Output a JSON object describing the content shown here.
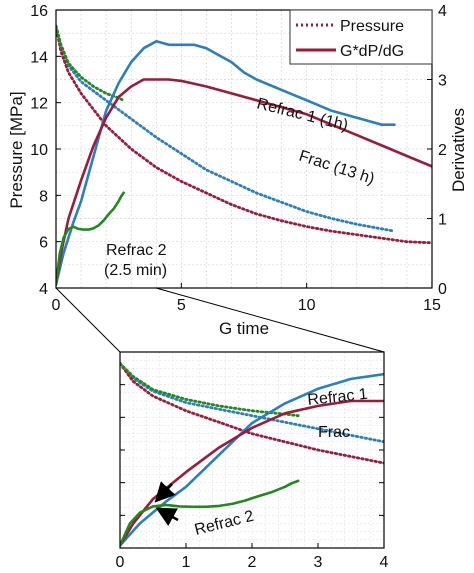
{
  "chart_data": [
    {
      "type": "line",
      "xlabel": "G time",
      "ylabel": "Pressure [MPa]",
      "y2label": "Derivatives",
      "xlim": [
        0,
        15
      ],
      "ylim": [
        4,
        16
      ],
      "y2lim": [
        0,
        4
      ],
      "xticks": [
        0,
        5,
        10,
        15
      ],
      "yticks": [
        4,
        6,
        8,
        10,
        12,
        14,
        16
      ],
      "y2ticks": [
        0,
        1,
        2,
        3,
        4
      ],
      "grid": true,
      "legend": {
        "placement": "top-right",
        "entries": [
          {
            "label": "Pressure",
            "style": "dotted"
          },
          {
            "label": "G*dP/dG",
            "style": "solid"
          }
        ]
      },
      "series": [
        {
          "name": "Refrac 1 (1h)",
          "color": "#2a7fc1",
          "kind": "pressure",
          "axis": "left",
          "points": [
            [
              0,
              15.3
            ],
            [
              0.2,
              14.4
            ],
            [
              0.5,
              13.6
            ],
            [
              1,
              12.9
            ],
            [
              1.5,
              12.5
            ],
            [
              2,
              12.1
            ],
            [
              3,
              11.3
            ],
            [
              4,
              10.5
            ],
            [
              5,
              9.8
            ],
            [
              6,
              9.1
            ],
            [
              7,
              8.6
            ],
            [
              8,
              8.1
            ],
            [
              9,
              7.7
            ],
            [
              10,
              7.3
            ],
            [
              11,
              7.0
            ],
            [
              12,
              6.75
            ],
            [
              13,
              6.55
            ],
            [
              13.5,
              6.45
            ]
          ]
        },
        {
          "name": "Frac (13 h)",
          "color": "#9b1b3a",
          "kind": "pressure",
          "axis": "left",
          "points": [
            [
              0,
              15.3
            ],
            [
              0.2,
              14.2
            ],
            [
              0.5,
              13.3
            ],
            [
              1,
              12.4
            ],
            [
              1.5,
              11.7
            ],
            [
              2,
              11.0
            ],
            [
              3,
              10.0
            ],
            [
              4,
              9.2
            ],
            [
              5,
              8.6
            ],
            [
              6,
              8.1
            ],
            [
              7,
              7.6
            ],
            [
              8,
              7.2
            ],
            [
              9,
              6.9
            ],
            [
              10,
              6.65
            ],
            [
              11,
              6.45
            ],
            [
              12,
              6.3
            ],
            [
              13,
              6.15
            ],
            [
              14,
              6.0
            ],
            [
              15,
              5.95
            ]
          ]
        },
        {
          "name": "Refrac 2 (2.5 min)",
          "color": "#22891f",
          "kind": "pressure",
          "axis": "left",
          "points": [
            [
              0,
              15.3
            ],
            [
              0.2,
              14.5
            ],
            [
              0.5,
              13.7
            ],
            [
              1,
              13.1
            ],
            [
              1.5,
              12.7
            ],
            [
              2,
              12.4
            ],
            [
              2.5,
              12.2
            ],
            [
              2.7,
              12.1
            ]
          ]
        },
        {
          "name": "Refrac 1 (1h)",
          "color": "#2a7fc1",
          "kind": "derivative",
          "axis": "right",
          "points": [
            [
              0,
              0.05
            ],
            [
              0.3,
              0.5
            ],
            [
              0.7,
              0.95
            ],
            [
              1,
              1.25
            ],
            [
              1.5,
              1.9
            ],
            [
              2,
              2.55
            ],
            [
              2.5,
              2.95
            ],
            [
              3,
              3.25
            ],
            [
              3.5,
              3.45
            ],
            [
              4,
              3.55
            ],
            [
              4.5,
              3.5
            ],
            [
              5,
              3.5
            ],
            [
              5.5,
              3.5
            ],
            [
              6,
              3.45
            ],
            [
              6.5,
              3.35
            ],
            [
              7,
              3.25
            ],
            [
              7.5,
              3.1
            ],
            [
              8,
              3.0
            ],
            [
              9,
              2.85
            ],
            [
              10,
              2.7
            ],
            [
              11,
              2.55
            ],
            [
              12,
              2.45
            ],
            [
              13,
              2.35
            ],
            [
              13.5,
              2.35
            ]
          ]
        },
        {
          "name": "Frac (13 h)",
          "color": "#9b1b3a",
          "kind": "derivative",
          "axis": "right",
          "points": [
            [
              0,
              0.05
            ],
            [
              0.2,
              0.5
            ],
            [
              0.5,
              1.0
            ],
            [
              1,
              1.55
            ],
            [
              1.5,
              2.05
            ],
            [
              2,
              2.45
            ],
            [
              2.5,
              2.75
            ],
            [
              3,
              2.9
            ],
            [
              3.5,
              3.0
            ],
            [
              4,
              3.0
            ],
            [
              4.5,
              3.0
            ],
            [
              5,
              2.98
            ],
            [
              6,
              2.9
            ],
            [
              7,
              2.8
            ],
            [
              8,
              2.7
            ],
            [
              9,
              2.6
            ],
            [
              10,
              2.5
            ],
            [
              11,
              2.35
            ],
            [
              12,
              2.2
            ],
            [
              13,
              2.05
            ],
            [
              14,
              1.9
            ],
            [
              15,
              1.75
            ]
          ]
        },
        {
          "name": "Refrac 2 (2.5 min)",
          "color": "#22891f",
          "kind": "derivative",
          "axis": "right",
          "points": [
            [
              0,
              0.05
            ],
            [
              0.15,
              0.5
            ],
            [
              0.3,
              0.72
            ],
            [
              0.5,
              0.85
            ],
            [
              0.7,
              0.88
            ],
            [
              0.9,
              0.85
            ],
            [
              1.1,
              0.84
            ],
            [
              1.3,
              0.84
            ],
            [
              1.5,
              0.86
            ],
            [
              1.7,
              0.9
            ],
            [
              1.9,
              0.97
            ],
            [
              2.1,
              1.06
            ],
            [
              2.3,
              1.14
            ],
            [
              2.5,
              1.25
            ],
            [
              2.6,
              1.32
            ],
            [
              2.7,
              1.37
            ]
          ]
        }
      ],
      "annotations": [
        "Refrac 1 (1h)",
        "Frac (13 h)",
        "Refrac 2",
        "(2.5 min)"
      ]
    },
    {
      "type": "line",
      "description_of": "zoom of G time 0-4",
      "xlim": [
        0,
        4
      ],
      "xticks": [
        0,
        1,
        2,
        3,
        4
      ],
      "ylim": [
        4,
        16
      ],
      "y2lim": [
        0,
        4
      ],
      "grid": true,
      "annotations": [
        "Refrac 1",
        "Frac",
        "Refrac 2"
      ],
      "arrows": 2
    }
  ]
}
